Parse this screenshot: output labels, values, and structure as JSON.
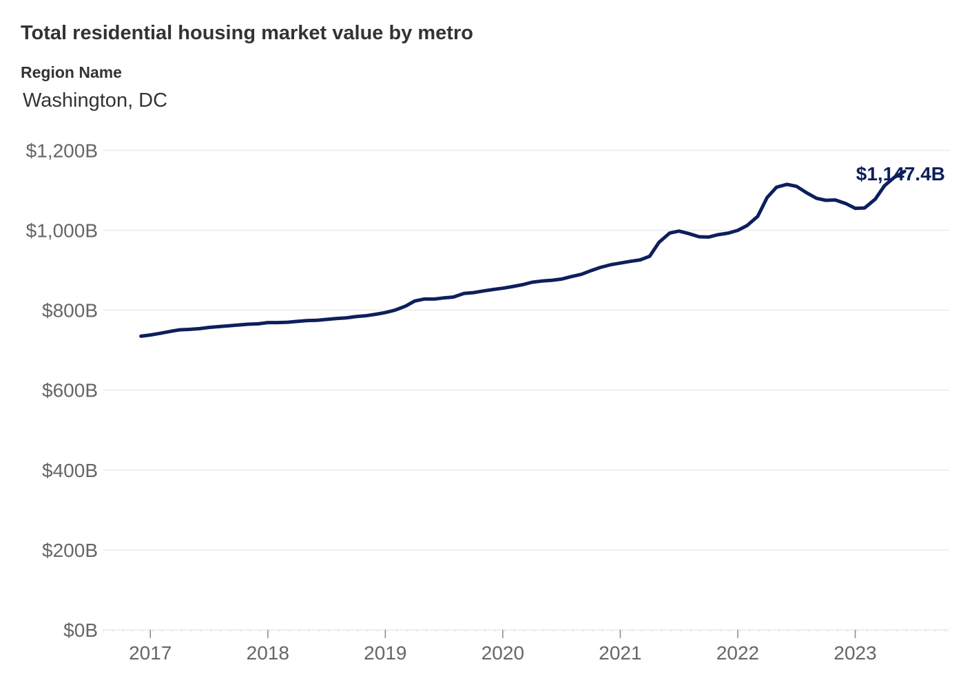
{
  "header": {
    "title": "Total residential housing market value by metro",
    "filter_label": "Region Name",
    "filter_value": "Washington, DC"
  },
  "colors": {
    "line": "#0d1f5c",
    "grid": "#ebebeb",
    "tick_text": "#666666"
  },
  "chart_data": {
    "type": "line",
    "title": "Total residential housing market value by metro",
    "xlabel": "",
    "ylabel": "",
    "ylim": [
      0,
      1200
    ],
    "y_ticks": [
      0,
      200,
      400,
      600,
      800,
      1000,
      1200
    ],
    "y_tick_labels": [
      "$0B",
      "$200B",
      "$400B",
      "$600B",
      "$800B",
      "$1,000B",
      "$1,200B"
    ],
    "x_ticks": [
      2017,
      2018,
      2019,
      2020,
      2021,
      2022,
      2023
    ],
    "x_tick_labels": [
      "2017",
      "2018",
      "2019",
      "2020",
      "2021",
      "2022",
      "2023"
    ],
    "grid": true,
    "end_label": "$1,147.4B",
    "series": [
      {
        "x": [
          2016.92,
          2017.0,
          2017.08,
          2017.17,
          2017.25,
          2017.33,
          2017.42,
          2017.5,
          2017.58,
          2017.67,
          2017.75,
          2017.83,
          2017.92,
          2018.0,
          2018.08,
          2018.17,
          2018.25,
          2018.33,
          2018.42,
          2018.5,
          2018.58,
          2018.67,
          2018.75,
          2018.83,
          2018.92,
          2019.0,
          2019.08,
          2019.17,
          2019.25,
          2019.33,
          2019.42,
          2019.5,
          2019.58,
          2019.67,
          2019.75,
          2019.83,
          2019.92,
          2020.0,
          2020.08,
          2020.17,
          2020.25,
          2020.33,
          2020.42,
          2020.5,
          2020.58,
          2020.67,
          2020.75,
          2020.83,
          2020.92,
          2021.0,
          2021.08,
          2021.17,
          2021.25,
          2021.33,
          2021.42,
          2021.5,
          2021.58,
          2021.67,
          2021.75,
          2021.83,
          2021.92,
          2022.0,
          2022.08,
          2022.17,
          2022.25,
          2022.33,
          2022.42,
          2022.5,
          2022.58,
          2022.67,
          2022.75,
          2022.83,
          2022.92,
          2023.0,
          2023.08,
          2023.17,
          2023.25,
          2023.33,
          2023.42
        ],
        "values": [
          735,
          738,
          742,
          747,
          751,
          752,
          754,
          757,
          759,
          761,
          763,
          765,
          766,
          769,
          769,
          770,
          772,
          774,
          775,
          777,
          779,
          781,
          784,
          786,
          790,
          794,
          800,
          810,
          823,
          828,
          828,
          831,
          833,
          842,
          844,
          848,
          852,
          855,
          859,
          864,
          870,
          873,
          875,
          878,
          884,
          890,
          899,
          907,
          914,
          918,
          922,
          926,
          935,
          970,
          993,
          998,
          992,
          984,
          983,
          989,
          993,
          1000,
          1012,
          1035,
          1082,
          1108,
          1115,
          1110,
          1095,
          1080,
          1075,
          1076,
          1067,
          1055,
          1056,
          1078,
          1112,
          1132,
          1147.4
        ]
      }
    ]
  }
}
